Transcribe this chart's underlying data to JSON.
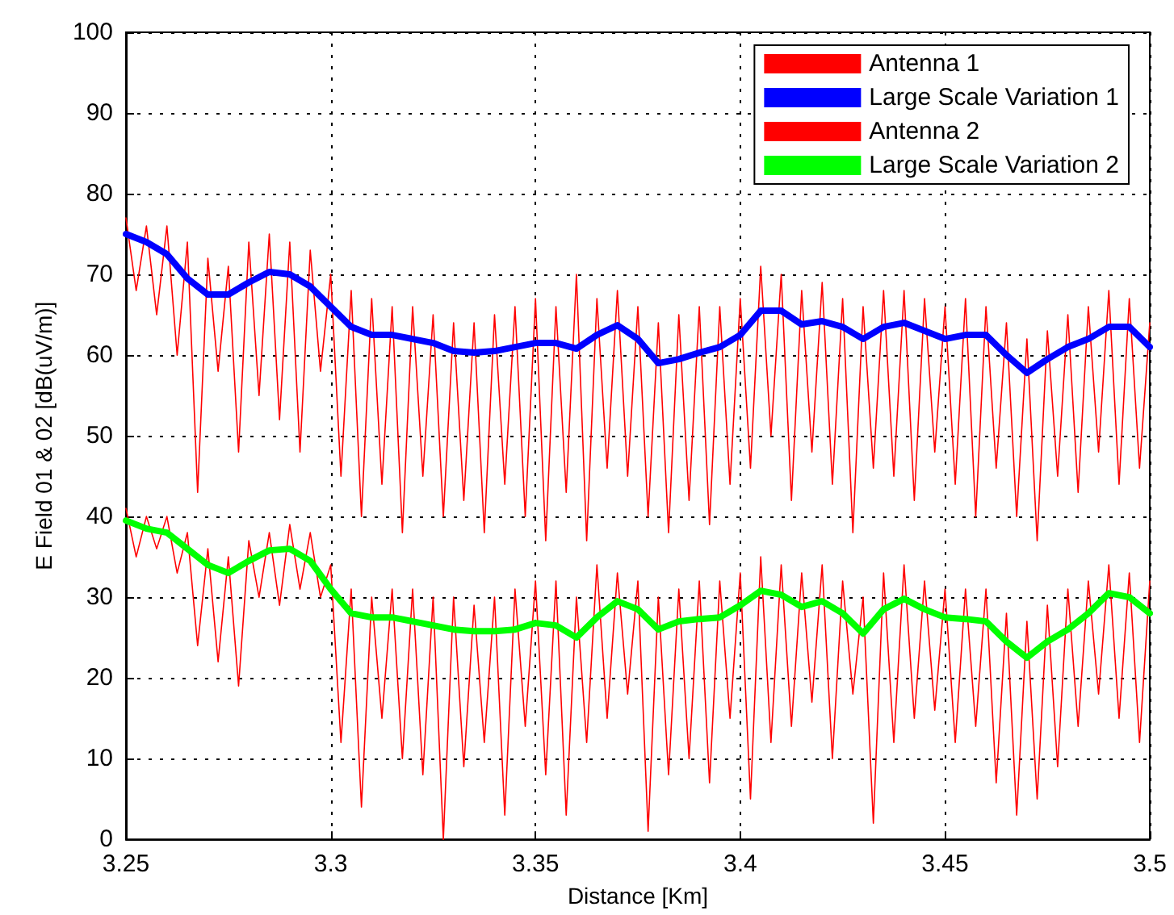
{
  "chart_data": {
    "type": "line",
    "xlabel": "Distance [Km]",
    "ylabel": "E Field 01 & 02 [dB(uV/m)]",
    "x": [
      3.25,
      3.2525,
      3.255,
      3.2575,
      3.26,
      3.2625,
      3.265,
      3.2675,
      3.27,
      3.2725,
      3.275,
      3.2775,
      3.28,
      3.2825,
      3.285,
      3.2875,
      3.29,
      3.2925,
      3.295,
      3.2975,
      3.3,
      3.3025,
      3.305,
      3.3075,
      3.31,
      3.3125,
      3.315,
      3.3175,
      3.32,
      3.3225,
      3.325,
      3.3275,
      3.33,
      3.3325,
      3.335,
      3.3375,
      3.34,
      3.3425,
      3.345,
      3.3475,
      3.35,
      3.3525,
      3.355,
      3.3575,
      3.36,
      3.3625,
      3.365,
      3.3675,
      3.37,
      3.3725,
      3.375,
      3.3775,
      3.38,
      3.3825,
      3.385,
      3.3875,
      3.39,
      3.3925,
      3.395,
      3.3975,
      3.4,
      3.4025,
      3.405,
      3.4075,
      3.41,
      3.4125,
      3.415,
      3.4175,
      3.42,
      3.4225,
      3.425,
      3.4275,
      3.43,
      3.4325,
      3.435,
      3.4375,
      3.44,
      3.4425,
      3.445,
      3.4475,
      3.45,
      3.4525,
      3.455,
      3.4575,
      3.46,
      3.4625,
      3.465,
      3.4675,
      3.47,
      3.4725,
      3.475,
      3.4775,
      3.48,
      3.4825,
      3.485,
      3.4875,
      3.49,
      3.4925,
      3.495,
      3.4975,
      3.5
    ],
    "series": [
      {
        "name": "Antenna 1",
        "color": "#ff0000",
        "values": [
          77,
          68,
          76,
          65,
          76,
          60,
          74,
          43,
          72,
          58,
          71,
          48,
          74,
          55,
          75,
          52,
          74,
          48,
          73,
          58,
          70,
          45,
          68,
          40,
          67,
          44,
          66,
          38,
          66,
          45,
          65,
          40,
          64,
          42,
          64,
          38,
          65,
          44,
          66,
          40,
          67,
          37,
          66,
          43,
          70,
          37,
          67,
          46,
          68,
          45,
          66,
          40,
          64,
          38,
          65,
          42,
          66,
          39,
          66,
          44,
          67,
          46,
          71,
          50,
          70,
          42,
          68,
          48,
          69,
          44,
          67,
          38,
          66,
          46,
          68,
          45,
          68,
          42,
          67,
          48,
          66,
          44,
          67,
          40,
          66,
          46,
          64,
          40,
          62,
          37,
          63,
          45,
          65,
          43,
          66,
          48,
          68,
          44,
          67,
          46,
          64
        ]
      },
      {
        "name": "Large Scale Variation 1",
        "color": "#0000ff",
        "x": [
          3.25,
          3.255,
          3.26,
          3.265,
          3.27,
          3.275,
          3.28,
          3.285,
          3.29,
          3.295,
          3.3,
          3.305,
          3.31,
          3.315,
          3.32,
          3.325,
          3.33,
          3.335,
          3.34,
          3.345,
          3.35,
          3.355,
          3.36,
          3.365,
          3.37,
          3.375,
          3.38,
          3.385,
          3.39,
          3.395,
          3.4,
          3.405,
          3.41,
          3.415,
          3.42,
          3.425,
          3.43,
          3.435,
          3.44,
          3.445,
          3.45,
          3.455,
          3.46,
          3.465,
          3.47,
          3.475,
          3.48,
          3.485,
          3.49,
          3.495,
          3.5
        ],
        "values": [
          75,
          74,
          72.5,
          69.5,
          67.5,
          67.5,
          69,
          70.3,
          70,
          68.5,
          66,
          63.5,
          62.5,
          62.5,
          62,
          61.5,
          60.5,
          60.3,
          60.5,
          61,
          61.5,
          61.5,
          60.8,
          62.5,
          63.7,
          62,
          59,
          59.5,
          60.3,
          61,
          62.5,
          65.5,
          65.5,
          63.8,
          64.2,
          63.5,
          62,
          63.5,
          64,
          63,
          62,
          62.5,
          62.5,
          60,
          57.8,
          59.5,
          61,
          62,
          63.5,
          63.5,
          61
        ]
      },
      {
        "name": "Antenna 2",
        "color": "#ff0000",
        "values": [
          41,
          35,
          40,
          36,
          40,
          33,
          38,
          24,
          36,
          22,
          35,
          19,
          37,
          30,
          38,
          29,
          39,
          31,
          38,
          30,
          34,
          12,
          31,
          4,
          30,
          15,
          31,
          10,
          31,
          8,
          30,
          0,
          30,
          9,
          29,
          12,
          30,
          3,
          31,
          14,
          32,
          8,
          32,
          3,
          30,
          12,
          34,
          15,
          33,
          18,
          32,
          1,
          30,
          8,
          31,
          10,
          32,
          7,
          32,
          15,
          33,
          5,
          35,
          12,
          34,
          14,
          33,
          17,
          34,
          10,
          32,
          18,
          30,
          2,
          33,
          12,
          34,
          15,
          32,
          16,
          31,
          12,
          31,
          14,
          31,
          7,
          28,
          3,
          27,
          5,
          29,
          9,
          31,
          14,
          32,
          18,
          34,
          15,
          33,
          12,
          32
        ]
      },
      {
        "name": "Large Scale Variation 2",
        "color": "#00ff00",
        "x": [
          3.25,
          3.255,
          3.26,
          3.265,
          3.27,
          3.275,
          3.28,
          3.285,
          3.29,
          3.295,
          3.3,
          3.305,
          3.31,
          3.315,
          3.32,
          3.325,
          3.33,
          3.335,
          3.34,
          3.345,
          3.35,
          3.355,
          3.36,
          3.365,
          3.37,
          3.375,
          3.38,
          3.385,
          3.39,
          3.395,
          3.4,
          3.405,
          3.41,
          3.415,
          3.42,
          3.425,
          3.43,
          3.435,
          3.44,
          3.445,
          3.45,
          3.455,
          3.46,
          3.465,
          3.47,
          3.475,
          3.48,
          3.485,
          3.49,
          3.495,
          3.5
        ],
        "values": [
          39.5,
          38.5,
          38,
          36,
          34,
          33,
          34.5,
          35.8,
          36,
          34.5,
          31,
          28,
          27.5,
          27.5,
          27,
          26.5,
          26,
          25.8,
          25.8,
          26,
          26.8,
          26.5,
          25,
          27.5,
          29.5,
          28.5,
          26,
          27,
          27.3,
          27.5,
          29,
          30.8,
          30.3,
          28.8,
          29.5,
          28,
          25.5,
          28.5,
          29.8,
          28.5,
          27.5,
          27.3,
          27,
          24.5,
          22.5,
          24.5,
          26,
          28,
          30.5,
          30,
          28
        ]
      }
    ],
    "xlim": [
      3.25,
      3.5
    ],
    "xticks": [
      3.25,
      3.3,
      3.35,
      3.4,
      3.45,
      3.5
    ],
    "ylim": [
      0,
      100
    ],
    "yticks": [
      0,
      10,
      20,
      30,
      40,
      50,
      60,
      70,
      80,
      90,
      100
    ],
    "grid": true,
    "legend": "top right",
    "marker": "none",
    "line_style": "solid"
  }
}
